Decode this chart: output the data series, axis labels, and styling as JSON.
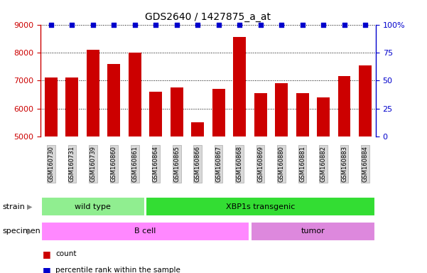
{
  "title": "GDS2640 / 1427875_a_at",
  "samples": [
    "GSM160730",
    "GSM160731",
    "GSM160739",
    "GSM160860",
    "GSM160861",
    "GSM160864",
    "GSM160865",
    "GSM160866",
    "GSM160867",
    "GSM160868",
    "GSM160869",
    "GSM160880",
    "GSM160881",
    "GSM160882",
    "GSM160883",
    "GSM160884"
  ],
  "counts": [
    7100,
    7100,
    8100,
    7600,
    8000,
    6600,
    6750,
    5500,
    6700,
    8550,
    6550,
    6900,
    6550,
    6400,
    7150,
    7550
  ],
  "percentiles": [
    100,
    100,
    100,
    100,
    100,
    100,
    100,
    100,
    100,
    100,
    100,
    100,
    100,
    100,
    100,
    100
  ],
  "bar_color": "#cc0000",
  "dot_color": "#0000cc",
  "ylim_left": [
    5000,
    9000
  ],
  "ylim_right": [
    0,
    100
  ],
  "yticks_left": [
    5000,
    6000,
    7000,
    8000,
    9000
  ],
  "yticks_right": [
    0,
    25,
    50,
    75,
    100
  ],
  "strain_groups": [
    {
      "label": "wild type",
      "start": 0,
      "end": 5,
      "color": "#90ee90"
    },
    {
      "label": "XBP1s transgenic",
      "start": 5,
      "end": 16,
      "color": "#33dd33"
    }
  ],
  "specimen_groups": [
    {
      "label": "B cell",
      "start": 0,
      "end": 10,
      "color": "#ff88ff"
    },
    {
      "label": "tumor",
      "start": 10,
      "end": 16,
      "color": "#dd88dd"
    }
  ],
  "legend_items": [
    {
      "color": "#cc0000",
      "label": "count"
    },
    {
      "color": "#0000cc",
      "label": "percentile rank within the sample"
    }
  ],
  "background_color": "#ffffff",
  "tick_label_bg": "#d8d8d8"
}
